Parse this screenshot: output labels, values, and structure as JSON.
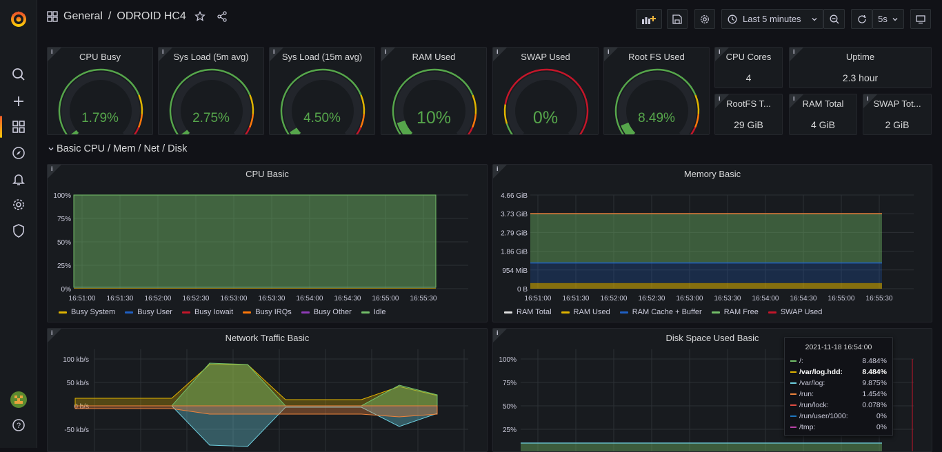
{
  "topbar": {
    "breadcrumb_folder": "General",
    "breadcrumb_sep": "/",
    "dashboard_title": "ODROID HC4",
    "time_range": "Last 5 minutes",
    "refresh_interval": "5s"
  },
  "gauges": [
    {
      "title": "CPU Busy",
      "value": "1.79%",
      "fraction": 0.0179
    },
    {
      "title": "Sys Load (5m avg)",
      "value": "2.75%",
      "fraction": 0.0275
    },
    {
      "title": "Sys Load (15m avg)",
      "value": "4.50%",
      "fraction": 0.045
    },
    {
      "title": "RAM Used",
      "value": "10%",
      "fraction": 0.1
    },
    {
      "title": "SWAP Used",
      "value": "0%",
      "fraction": 0.0
    },
    {
      "title": "Root FS Used",
      "value": "8.49%",
      "fraction": 0.0849
    }
  ],
  "stats": {
    "cpu_cores": {
      "title": "CPU Cores",
      "value": "4"
    },
    "uptime": {
      "title": "Uptime",
      "value": "2.3 hour"
    },
    "rootfs_total": {
      "title": "RootFS T...",
      "value": "29 GiB"
    },
    "ram_total": {
      "title": "RAM Total",
      "value": "4 GiB"
    },
    "swap_total": {
      "title": "SWAP Tot...",
      "value": "2 GiB"
    }
  },
  "row": {
    "title": "Basic CPU / Mem / Net / Disk"
  },
  "info_icon": "i",
  "colors": {
    "green": "#56a64b",
    "yellow": "#e0b400",
    "blue": "#1f60c4",
    "red": "#c4162a",
    "orange": "#ff780a",
    "purple": "#8f3bb8",
    "light_green": "#73bf69",
    "white": "#e0e0e0"
  },
  "panels": {
    "cpu_basic": {
      "title": "CPU Basic",
      "chart_data": {
        "type": "area",
        "y_ticks": [
          "100%",
          "75%",
          "50%",
          "25%",
          "0%"
        ],
        "x_ticks": [
          "16:51:00",
          "16:51:30",
          "16:52:00",
          "16:52:30",
          "16:53:00",
          "16:53:30",
          "16:54:00",
          "16:54:30",
          "16:55:00",
          "16:55:30"
        ],
        "ylim": [
          0,
          100
        ],
        "series": [
          {
            "name": "Busy System",
            "color": "#e0b400",
            "values": [
              1,
              1,
              1,
              1,
              1,
              1,
              1,
              1,
              1
            ]
          },
          {
            "name": "Busy User",
            "color": "#1f60c4",
            "values": [
              0.5,
              0.5,
              0.5,
              0.5,
              0.5,
              0.5,
              0.5,
              0.5,
              0.5
            ]
          },
          {
            "name": "Busy Iowait",
            "color": "#c4162a",
            "values": [
              0,
              0,
              0,
              0,
              0,
              0,
              0,
              0,
              0
            ]
          },
          {
            "name": "Busy IRQs",
            "color": "#ff780a",
            "values": [
              0,
              0,
              0,
              0,
              0,
              0,
              0,
              0,
              0
            ]
          },
          {
            "name": "Busy Other",
            "color": "#8f3bb8",
            "values": [
              0,
              0,
              0,
              0,
              0,
              0,
              0,
              0,
              0
            ]
          },
          {
            "name": "Idle",
            "color": "#73bf69",
            "values": [
              98.5,
              98.5,
              98.5,
              98.5,
              98.5,
              98.5,
              98.5,
              98.5,
              98.5
            ]
          }
        ]
      }
    },
    "memory_basic": {
      "title": "Memory Basic",
      "chart_data": {
        "type": "area",
        "y_ticks": [
          "4.66 GiB",
          "3.73 GiB",
          "2.79 GiB",
          "1.86 GiB",
          "954 MiB",
          "0 B"
        ],
        "x_ticks": [
          "16:51:00",
          "16:51:30",
          "16:52:00",
          "16:52:30",
          "16:53:00",
          "16:53:30",
          "16:54:00",
          "16:54:30",
          "16:55:00",
          "16:55:30"
        ],
        "series": [
          {
            "name": "RAM Total",
            "color": "#e0e0e0",
            "values": [
              3.73,
              3.73
            ]
          },
          {
            "name": "RAM Used",
            "color": "#e0b400",
            "values": [
              0.28,
              0.28
            ]
          },
          {
            "name": "RAM Cache + Buffer",
            "color": "#1f60c4",
            "values": [
              1.0,
              1.0
            ]
          },
          {
            "name": "RAM Free",
            "color": "#73bf69",
            "values": [
              3.73,
              3.73
            ]
          },
          {
            "name": "SWAP Used",
            "color": "#c4162a",
            "values": [
              0,
              0
            ]
          }
        ]
      }
    },
    "network_basic": {
      "title": "Network Traffic Basic",
      "chart_data": {
        "type": "area",
        "y_ticks": [
          "100 kb/s",
          "50 kb/s",
          "0 b/s",
          "-50 kb/s"
        ]
      }
    },
    "disk_basic": {
      "title": "Disk Space Used Basic",
      "chart_data": {
        "type": "area",
        "y_ticks": [
          "100%",
          "75%",
          "50%",
          "25%"
        ]
      }
    }
  },
  "tooltip": {
    "time": "2021-11-18 16:54:00",
    "rows": [
      {
        "name": "/:",
        "value": "8.484%",
        "color": "#73bf69",
        "bold": false
      },
      {
        "name": "/var/log.hdd:",
        "value": "8.484%",
        "color": "#e0b400",
        "bold": true
      },
      {
        "name": "/var/log:",
        "value": "9.875%",
        "color": "#6ed0e0",
        "bold": false
      },
      {
        "name": "/run:",
        "value": "1.454%",
        "color": "#ef843c",
        "bold": false
      },
      {
        "name": "/run/lock:",
        "value": "0.078%",
        "color": "#e24d42",
        "bold": false
      },
      {
        "name": "/run/user/1000:",
        "value": "0%",
        "color": "#1f78c1",
        "bold": false
      },
      {
        "name": "/tmp:",
        "value": "0%",
        "color": "#ba43a9",
        "bold": false
      }
    ]
  }
}
